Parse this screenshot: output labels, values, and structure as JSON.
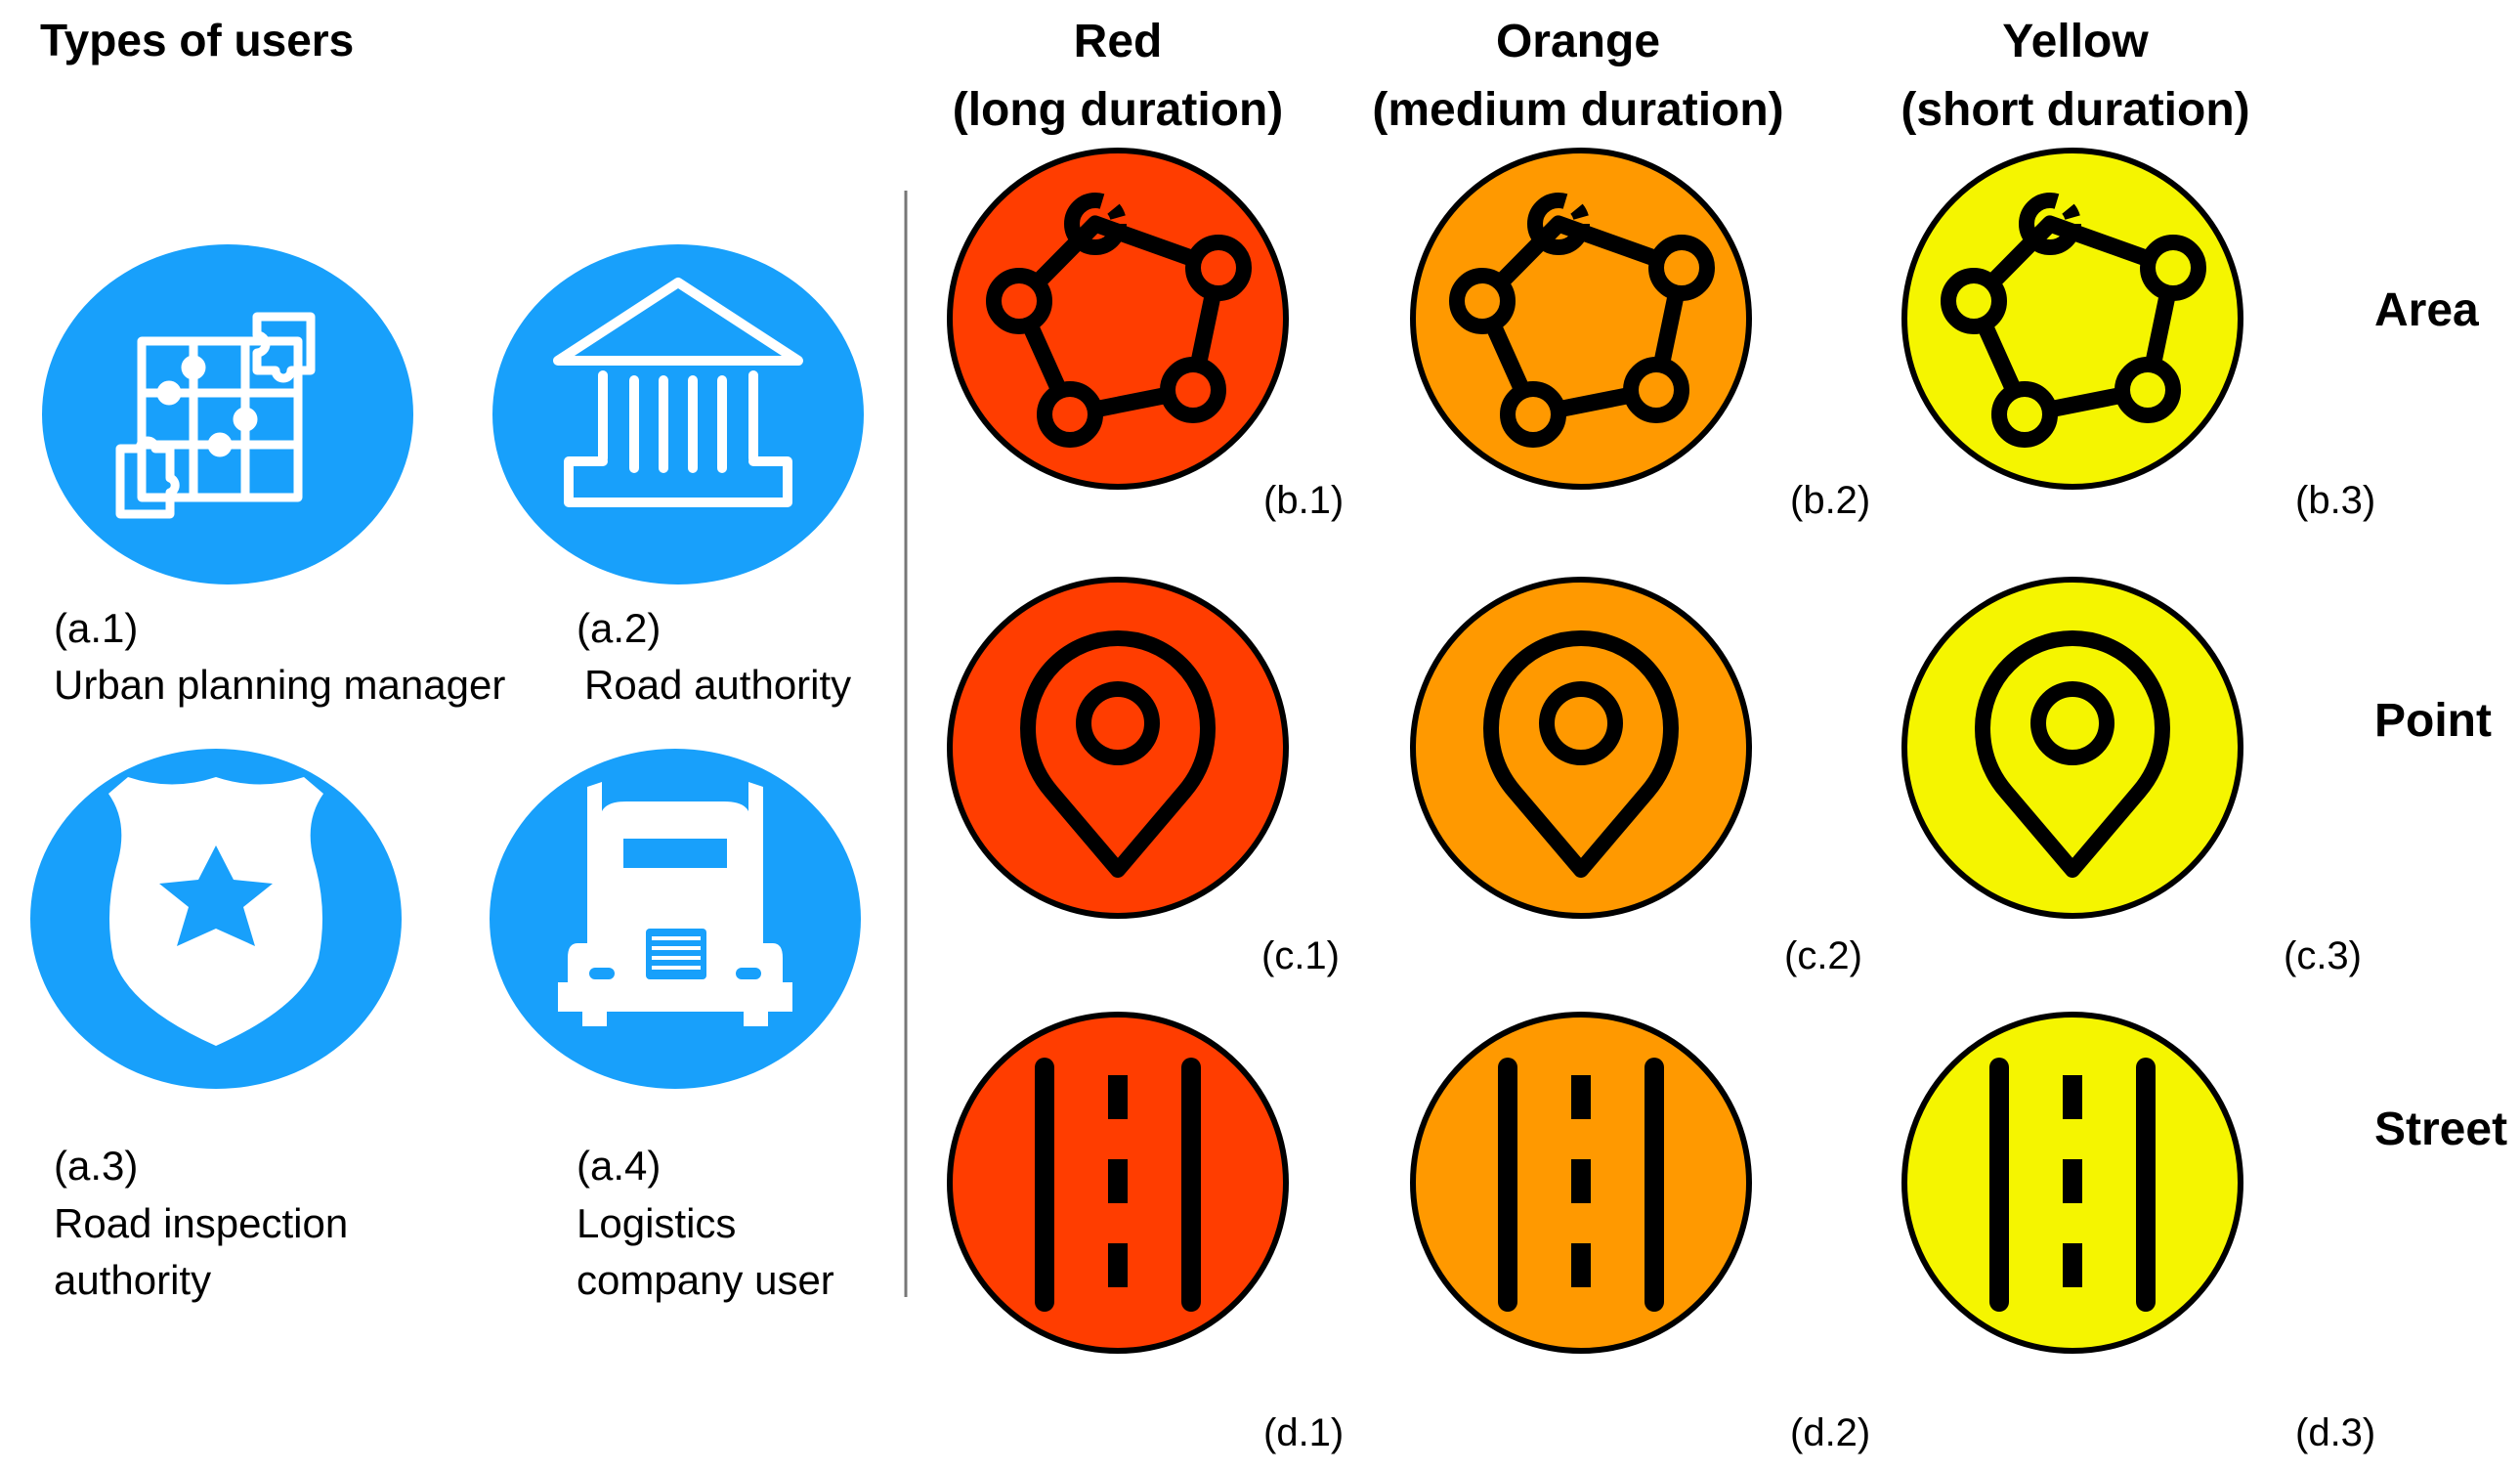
{
  "title": "Types of users",
  "colors": {
    "user_blue": "#18A0FB",
    "red": "#FF3D00",
    "orange": "#FF9900",
    "yellow": "#F5F500",
    "icon_stroke": "#000000"
  },
  "users": [
    {
      "id": "(a.1)",
      "label_lines": [
        "Urban planning manager"
      ],
      "icon": "puzzle-icon"
    },
    {
      "id": "(a.2)",
      "label_lines": [
        "Road authority"
      ],
      "icon": "building-icon"
    },
    {
      "id": "(a.3)",
      "label_lines": [
        "Road inspection",
        "authority"
      ],
      "icon": "police-badge-icon"
    },
    {
      "id": "(a.4)",
      "label_lines": [
        "Logistics",
        "company user"
      ],
      "icon": "truck-icon"
    }
  ],
  "columns": [
    {
      "line1": "Red",
      "line2": "(long duration)",
      "color": "#FF3D00"
    },
    {
      "line1": "Orange",
      "line2": "(medium duration)",
      "color": "#FF9900"
    },
    {
      "line1": "Yellow",
      "line2": "(short duration)",
      "color": "#F5F500"
    }
  ],
  "rows": [
    {
      "label": "Area",
      "icon": "polygon-area-icon",
      "ids": [
        "(b.1)",
        "(b.2)",
        "(b.3)"
      ]
    },
    {
      "label": "Point",
      "icon": "map-pin-icon",
      "ids": [
        "(c.1)",
        "(c.2)",
        "(c.3)"
      ]
    },
    {
      "label": "Street",
      "icon": "road-icon",
      "ids": [
        "(d.1)",
        "(d.2)",
        "(d.3)"
      ]
    }
  ]
}
